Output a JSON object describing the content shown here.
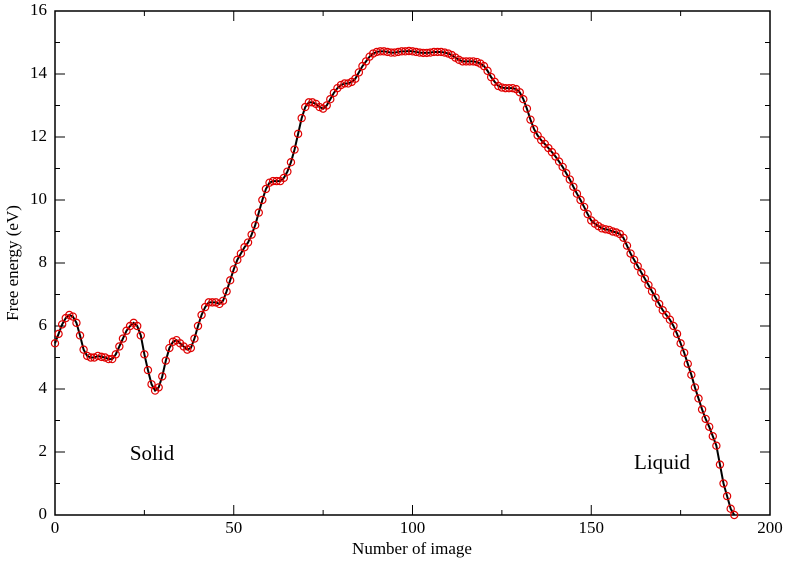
{
  "chart_data": {
    "type": "line",
    "xlabel": "Number of image",
    "ylabel": "Free energy (eV)",
    "annotations": [
      "Solid",
      "Liquid"
    ],
    "x": [
      0,
      1,
      2,
      3,
      4,
      5,
      6,
      7,
      8,
      9,
      10,
      11,
      12,
      13,
      14,
      15,
      16,
      17,
      18,
      19,
      20,
      21,
      22,
      23,
      24,
      25,
      26,
      27,
      28,
      29,
      30,
      31,
      32,
      33,
      34,
      35,
      36,
      37,
      38,
      39,
      40,
      41,
      42,
      43,
      44,
      45,
      46,
      47,
      48,
      49,
      50,
      51,
      52,
      53,
      54,
      55,
      56,
      57,
      58,
      59,
      60,
      61,
      62,
      63,
      64,
      65,
      66,
      67,
      68,
      69,
      70,
      71,
      72,
      73,
      74,
      75,
      76,
      77,
      78,
      79,
      80,
      81,
      82,
      83,
      84,
      85,
      86,
      87,
      88,
      89,
      90,
      91,
      92,
      93,
      94,
      95,
      96,
      97,
      98,
      99,
      100,
      101,
      102,
      103,
      104,
      105,
      106,
      107,
      108,
      109,
      110,
      111,
      112,
      113,
      114,
      115,
      116,
      117,
      118,
      119,
      120,
      121,
      122,
      123,
      124,
      125,
      126,
      127,
      128,
      129,
      130,
      131,
      132,
      133,
      134,
      135,
      136,
      137,
      138,
      139,
      140,
      141,
      142,
      143,
      144,
      145,
      146,
      147,
      148,
      149,
      150,
      151,
      152,
      153,
      154,
      155,
      156,
      157,
      158,
      159,
      160,
      161,
      162,
      163,
      164,
      165,
      166,
      167,
      168,
      169,
      170,
      171,
      172,
      173,
      174,
      175,
      176,
      177,
      178,
      179,
      180,
      181,
      182,
      183,
      184,
      185,
      186,
      187,
      188,
      189,
      190
    ],
    "series": [
      {
        "color": "#e00000",
        "line_color": "#000000",
        "values": [
          5.45,
          5.75,
          6.05,
          6.25,
          6.35,
          6.3,
          6.1,
          5.7,
          5.25,
          5.05,
          5.0,
          5.0,
          5.05,
          5.02,
          5.0,
          4.95,
          4.95,
          5.1,
          5.35,
          5.6,
          5.85,
          6.0,
          6.1,
          6.0,
          5.7,
          5.1,
          4.6,
          4.15,
          3.95,
          4.05,
          4.4,
          4.9,
          5.3,
          5.5,
          5.55,
          5.45,
          5.35,
          5.25,
          5.3,
          5.6,
          6.0,
          6.35,
          6.6,
          6.75,
          6.75,
          6.75,
          6.7,
          6.8,
          7.1,
          7.45,
          7.8,
          8.1,
          8.3,
          8.5,
          8.65,
          8.9,
          9.2,
          9.6,
          10.0,
          10.35,
          10.55,
          10.6,
          10.6,
          10.6,
          10.7,
          10.9,
          11.2,
          11.6,
          12.1,
          12.6,
          12.95,
          13.1,
          13.1,
          13.05,
          12.95,
          12.9,
          13.0,
          13.2,
          13.4,
          13.55,
          13.65,
          13.7,
          13.7,
          13.75,
          13.85,
          14.05,
          14.25,
          14.4,
          14.55,
          14.65,
          14.7,
          14.72,
          14.72,
          14.7,
          14.68,
          14.68,
          14.7,
          14.72,
          14.72,
          14.73,
          14.72,
          14.7,
          14.68,
          14.67,
          14.67,
          14.68,
          14.7,
          14.7,
          14.7,
          14.68,
          14.65,
          14.6,
          14.52,
          14.45,
          14.4,
          14.4,
          14.4,
          14.4,
          14.38,
          14.33,
          14.25,
          14.1,
          13.9,
          13.75,
          13.62,
          13.57,
          13.55,
          13.55,
          13.55,
          13.52,
          13.42,
          13.2,
          12.9,
          12.55,
          12.25,
          12.05,
          11.9,
          11.78,
          11.65,
          11.52,
          11.38,
          11.22,
          11.05,
          10.85,
          10.65,
          10.42,
          10.2,
          10.0,
          9.78,
          9.55,
          9.35,
          9.25,
          9.17,
          9.1,
          9.07,
          9.05,
          9.0,
          8.97,
          8.92,
          8.8,
          8.55,
          8.3,
          8.1,
          7.9,
          7.7,
          7.5,
          7.3,
          7.1,
          6.9,
          6.7,
          6.5,
          6.35,
          6.2,
          6.0,
          5.75,
          5.45,
          5.15,
          4.8,
          4.45,
          4.05,
          3.7,
          3.35,
          3.05,
          2.8,
          2.5,
          2.2,
          1.6,
          1.0,
          0.6,
          0.2,
          0.0
        ]
      }
    ],
    "xlim": [
      0,
      200
    ],
    "xticks": [
      0,
      50,
      100,
      150,
      200
    ],
    "ylim": [
      0,
      16
    ],
    "yticks": [
      0,
      2,
      4,
      6,
      8,
      10,
      12,
      14,
      16
    ],
    "grid": false
  }
}
